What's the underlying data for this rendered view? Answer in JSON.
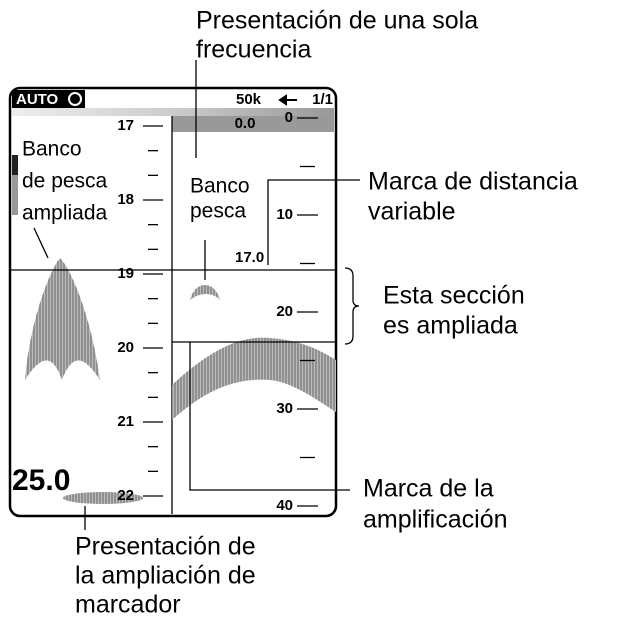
{
  "header": {
    "mode": "AUTO",
    "frequency": "50k",
    "range_scale": "1/1"
  },
  "screen": {
    "start_depth": "0.0",
    "vrm_readout": "17.0",
    "marker_depth": "25.0",
    "zoom_scale": [
      17,
      18,
      19,
      20,
      21,
      22
    ],
    "depth_scale": [
      0,
      10,
      20,
      30,
      40
    ],
    "fish_zoom_label": [
      "Banco",
      "de pesca",
      "ampliada"
    ],
    "fish_label": [
      "Banco",
      "pesca"
    ]
  },
  "callouts": {
    "single_frequency": [
      "Presentación de una sola",
      "frecuencia"
    ],
    "vrm": [
      "Marca de distancia",
      "variable"
    ],
    "zoom_section": [
      "Esta sección",
      "es ampliada"
    ],
    "zoom_mark": [
      "Marca de la",
      "amplificación"
    ],
    "marker_zoom": [
      "Presentación de",
      "la ampliación de",
      "marcador"
    ]
  }
}
